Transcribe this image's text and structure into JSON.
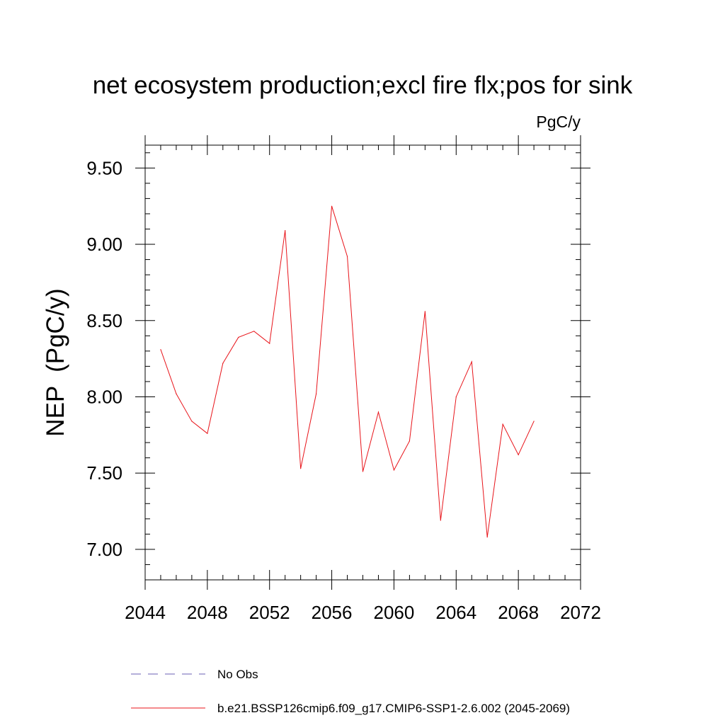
{
  "chart_data": {
    "type": "line",
    "title": "net ecosystem production;excl fire flx;pos for sink",
    "units": "PgC/y",
    "xlabel": "",
    "ylabel": "NEP  (PgC/y)",
    "xlim": [
      2044,
      2072
    ],
    "ylim": [
      6.8,
      9.65
    ],
    "x_ticks": [
      2044,
      2048,
      2052,
      2056,
      2060,
      2064,
      2068,
      2072
    ],
    "x_tick_labels": [
      "2044",
      "2048",
      "2052",
      "2056",
      "2060",
      "2064",
      "2068",
      "2072"
    ],
    "y_ticks": [
      7.0,
      7.5,
      8.0,
      8.5,
      9.0,
      9.5
    ],
    "y_tick_labels": [
      "7.00",
      "7.50",
      "8.00",
      "8.50",
      "9.00",
      "9.50"
    ],
    "grid": false,
    "legend_position": "bottom",
    "series": [
      {
        "name": "No Obs",
        "color": "#6b5fb5",
        "dash": "dashed",
        "x": [],
        "values": []
      },
      {
        "name": "b.e21.BSSP126cmip6.f09_g17.CMIP6-SSP1-2.6.002 (2045-2069)",
        "color": "#e8141a",
        "dash": "solid",
        "x": [
          2045,
          2046,
          2047,
          2048,
          2049,
          2050,
          2051,
          2052,
          2053,
          2054,
          2055,
          2056,
          2057,
          2058,
          2059,
          2060,
          2061,
          2062,
          2063,
          2064,
          2065,
          2066,
          2067,
          2068,
          2069
        ],
        "values": [
          8.31,
          8.02,
          7.84,
          7.76,
          8.22,
          8.39,
          8.43,
          8.35,
          9.09,
          7.53,
          8.02,
          9.25,
          8.92,
          7.51,
          7.9,
          7.52,
          7.71,
          8.56,
          7.19,
          8.0,
          8.23,
          7.08,
          7.82,
          7.62,
          7.84
        ]
      }
    ]
  }
}
